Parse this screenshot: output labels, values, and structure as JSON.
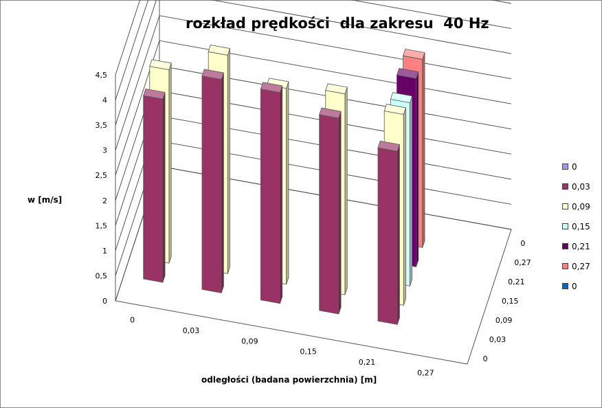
{
  "chart_data": {
    "type": "bar",
    "title": "rozkład prędkości  dla zakresu  40 Hz",
    "ylabel": "w [m/s]",
    "xlabel": "odległości (badana powierzchnia) [m]",
    "ylim": [
      0,
      4.5
    ],
    "y_ticks": [
      "0",
      "0,5",
      "1",
      "1,5",
      "2",
      "2,5",
      "3",
      "3,5",
      "4",
      "4,5"
    ],
    "x_categories": [
      "0",
      "0,03",
      "0,09",
      "0,15",
      "0,21",
      "0,27"
    ],
    "depth_categories": [
      "0",
      "0,03",
      "0,09",
      "0,15",
      "0,21",
      "0,27",
      "0"
    ],
    "legend_position": "right",
    "grid": true,
    "series": [
      {
        "name": "0",
        "color": "#9999ff",
        "values": [
          0,
          0,
          0,
          0,
          0,
          0
        ]
      },
      {
        "name": "0,03",
        "color": "#993366",
        "values": [
          3.65,
          4.25,
          4.2,
          3.9,
          3.45,
          0
        ]
      },
      {
        "name": "0,09",
        "color": "#ffffcc",
        "values": [
          3.85,
          4.35,
          3.9,
          4.0,
          3.8,
          0
        ]
      },
      {
        "name": "0,15",
        "color": "#ccffff",
        "values": [
          0,
          0,
          0,
          0,
          3.65,
          0
        ]
      },
      {
        "name": "0,21",
        "color": "#660066",
        "values": [
          0,
          0,
          0,
          0,
          3.75,
          0
        ]
      },
      {
        "name": "0,27",
        "color": "#ff8080",
        "values": [
          0,
          0,
          0,
          0,
          3.75,
          0
        ]
      },
      {
        "name": "0",
        "color": "#0066cc",
        "values": [
          0,
          0,
          0,
          0,
          0,
          0
        ]
      }
    ]
  }
}
